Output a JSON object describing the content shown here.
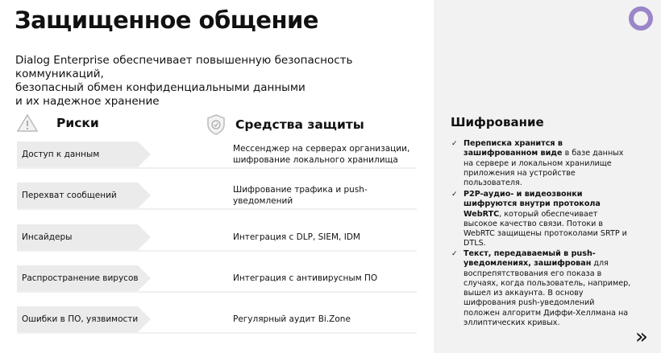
{
  "title": "Защищенное общение",
  "subtitle": "Dialog Enterprise обеспечивает повышенную безопасность коммуникаций, безопасный обмен конфиденциальными данными и их надежное хранение",
  "subtitle_lines": [
    "Dialog Enterprise обеспечивает повышенную безопасность",
    "коммуникаций,",
    "безопасный обмен конфиденциальными данными",
    "и их надежное хранение"
  ],
  "risks_header": "Риски",
  "means_header": "Средства защиты",
  "rows": [
    {
      "risk": "Доступ к данным",
      "means": "Мессенджер на серверах организации, шифрование локального хранилища"
    },
    {
      "risk": "Перехват сообщений",
      "means": "Шифрование трафика и push-уведомлений"
    },
    {
      "risk": "Инсайдеры",
      "means": "Интеграция с DLP, SIEM, IDM"
    },
    {
      "risk": "Распространение вирусов",
      "means": "Интеграция с антивирусным ПО"
    },
    {
      "risk": "Ошибки в ПО, уязвимости",
      "means": "Регулярный аудит Bi.Zone"
    }
  ],
  "encryption": {
    "title": "Шифрование",
    "items": [
      {
        "bold": "Переписка хранится в зашифрованном виде",
        "rest": " в базе данных на сервере и локальном хранилище приложения на устройстве пользователя."
      },
      {
        "bold": "P2P-аудио- и видеозвонки шифруются внутри протокола WebRTC",
        "rest": ", который обеспечивает высокое качество связи. Потоки в WebRTC защищены протоколами SRTP и DTLS."
      },
      {
        "bold": "Текст, передаваемый в push-уведомлениях, зашифрован",
        "rest": " для воспрепятствования его показа в случаях, когда пользователь, например, вышел из аккаунта. В основу шифрования push-уведомлений положен алгоритм Диффи-Хеллмана на эллиптических кривых."
      }
    ]
  },
  "colors": {
    "accent": "#9b86c9",
    "panel": "#f2f2f2",
    "risk_bar": "#ebebeb"
  },
  "icons": {
    "risks": "warning-triangle-icon",
    "means": "shield-check-icon",
    "logo": "chat-bubble-logo",
    "next": "double-chevron-right-icon"
  }
}
